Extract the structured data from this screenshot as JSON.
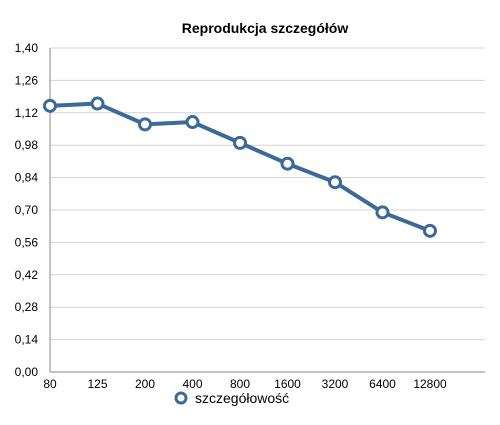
{
  "chart_data": {
    "type": "line",
    "title": "Reprodukcja szczegółów",
    "xlabel": "",
    "ylabel": "",
    "categories": [
      "80",
      "125",
      "200",
      "400",
      "800",
      "1600",
      "3200",
      "6400",
      "12800"
    ],
    "y_ticks": [
      "0,00",
      "0,14",
      "0,28",
      "0,42",
      "0,56",
      "0,70",
      "0,84",
      "0,98",
      "1,12",
      "1,26",
      "1,40"
    ],
    "ylim": [
      0,
      1.4
    ],
    "grid": true,
    "legend_position": "bottom",
    "series": [
      {
        "name": "szczegółowość",
        "color": "#3b6a98",
        "values": [
          1.15,
          1.16,
          1.07,
          1.08,
          0.99,
          0.9,
          0.82,
          0.69,
          0.61
        ]
      }
    ]
  }
}
